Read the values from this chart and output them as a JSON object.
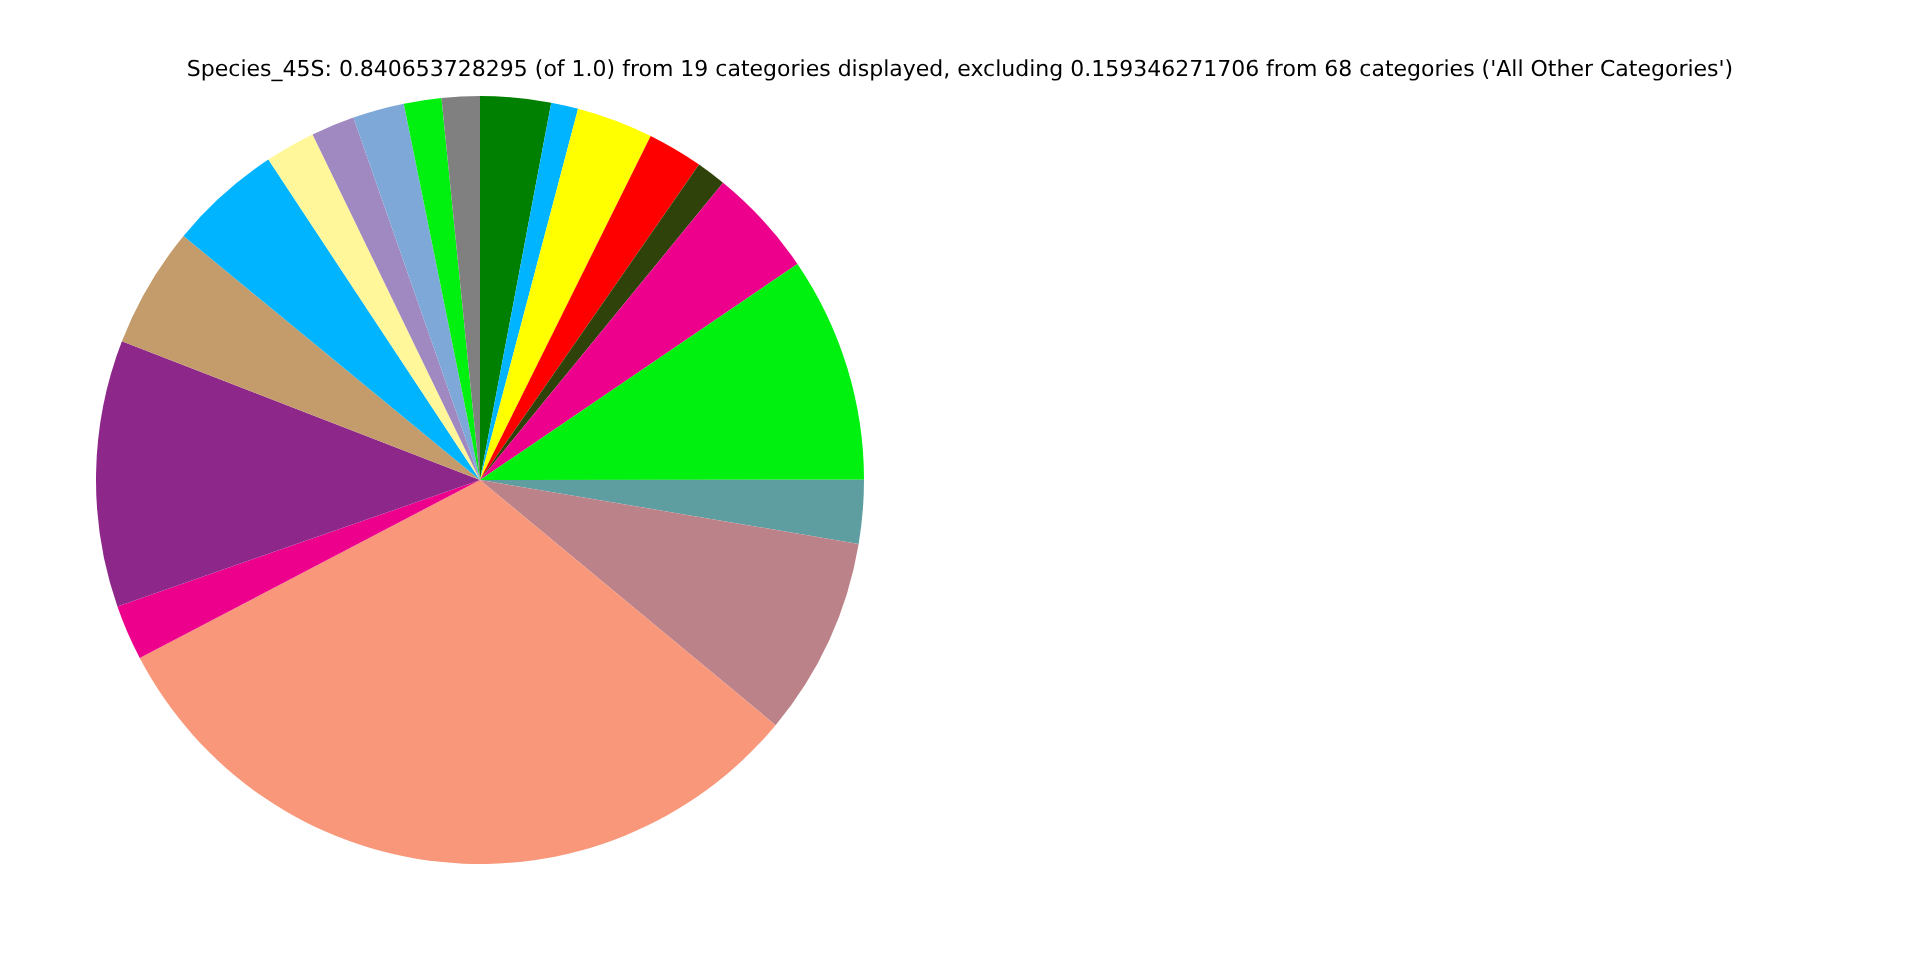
{
  "chart_data": {
    "type": "pie",
    "title": "Species_45S: 0.840653728295 (of 1.0) from 19 categories displayed, excluding 0.159346271706 from 68 categories ('All Other Categories')",
    "categories": [
      null,
      null,
      null,
      null,
      null,
      null,
      null,
      null,
      null,
      null,
      null,
      null,
      null,
      null,
      null,
      null,
      null,
      null,
      null
    ],
    "values": [
      2.97,
      1.14,
      3.22,
      2.33,
      1.25,
      4.58,
      9.5,
      2.67,
      8.36,
      31.31,
      2.33,
      11.22,
      5.08,
      4.75,
      2.11,
      1.83,
      2.17,
      1.58,
      1.6
    ],
    "colors": [
      "#008000",
      "#00b4ff",
      "#ffff00",
      "#ff0000",
      "#2f4209",
      "#ec008c",
      "#00f00f",
      "#5f9ea0",
      "#bc8289",
      "#f8977a",
      "#ec008c",
      "#8e278a",
      "#c49c6c",
      "#00b4ff",
      "#fff799",
      "#a088c0",
      "#7ea8d8",
      "#00f00f",
      "#808080"
    ],
    "legend": false
  }
}
